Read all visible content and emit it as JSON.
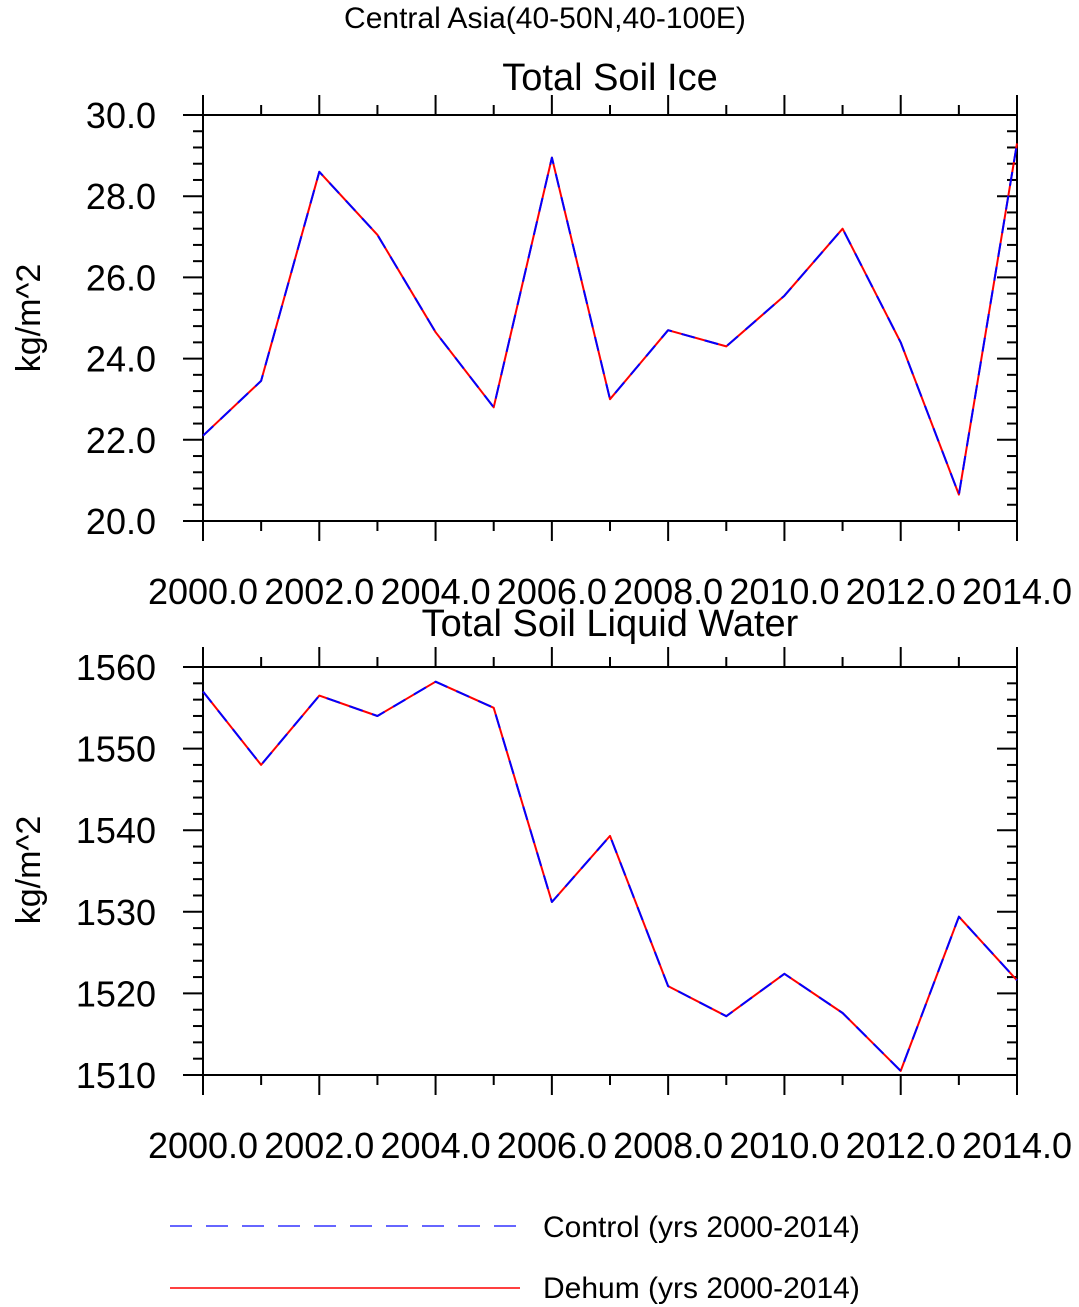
{
  "figure": {
    "title": "Central Asia(40-50N,40-100E)"
  },
  "legend": {
    "entries": [
      {
        "label": "Control (yrs 2000-2014)",
        "color": "#3333ff",
        "dash": "dashed"
      },
      {
        "label": "Dehum (yrs 2000-2014)",
        "color": "#ff0000",
        "dash": "solid"
      }
    ]
  },
  "chart_data": [
    {
      "type": "line",
      "title": "Total Soil Ice",
      "xlabel": "",
      "ylabel": "kg/m^2",
      "xlim": [
        2000,
        2014
      ],
      "ylim": [
        20,
        30
      ],
      "x_ticks": [
        2000,
        2002,
        2004,
        2006,
        2008,
        2010,
        2012,
        2014
      ],
      "x_tick_labels": [
        "2000.0",
        "2002.0",
        "2004.0",
        "2006.0",
        "2008.0",
        "2010.0",
        "2012.0",
        "2014.0"
      ],
      "y_ticks": [
        20,
        22,
        24,
        26,
        28,
        30
      ],
      "y_tick_labels": [
        "20.0",
        "22.0",
        "24.0",
        "26.0",
        "28.0",
        "30.0"
      ],
      "x": [
        2000,
        2001,
        2002,
        2003,
        2004,
        2005,
        2006,
        2007,
        2008,
        2009,
        2010,
        2011,
        2012,
        2013,
        2014
      ],
      "series": [
        {
          "name": "Control (yrs 2000-2014)",
          "color": "#0000ff",
          "values": [
            22.1,
            23.45,
            28.6,
            27.05,
            24.65,
            22.8,
            28.95,
            23.0,
            24.7,
            24.3,
            25.55,
            27.2,
            24.4,
            20.65,
            29.3
          ]
        },
        {
          "name": "Dehum (yrs 2000-2014)",
          "color": "#ff0000",
          "values": [
            22.1,
            23.45,
            28.6,
            27.05,
            24.65,
            22.8,
            28.95,
            23.0,
            24.7,
            24.3,
            25.55,
            27.2,
            24.4,
            20.65,
            29.3
          ]
        }
      ]
    },
    {
      "type": "line",
      "title": "Total Soil Liquid Water",
      "xlabel": "",
      "ylabel": "kg/m^2",
      "xlim": [
        2000,
        2014
      ],
      "ylim": [
        1510,
        1560
      ],
      "x_ticks": [
        2000,
        2002,
        2004,
        2006,
        2008,
        2010,
        2012,
        2014
      ],
      "x_tick_labels": [
        "2000.0",
        "2002.0",
        "2004.0",
        "2006.0",
        "2008.0",
        "2010.0",
        "2012.0",
        "2014.0"
      ],
      "y_ticks": [
        1510,
        1520,
        1530,
        1540,
        1550,
        1560
      ],
      "y_tick_labels": [
        "1510",
        "1520",
        "1530",
        "1540",
        "1550",
        "1560"
      ],
      "x": [
        2000,
        2001,
        2002,
        2003,
        2004,
        2005,
        2006,
        2007,
        2008,
        2009,
        2010,
        2011,
        2012,
        2013,
        2014
      ],
      "series": [
        {
          "name": "Control (yrs 2000-2014)",
          "color": "#0000ff",
          "values": [
            1557.0,
            1548.0,
            1556.5,
            1554.0,
            1558.2,
            1555.0,
            1531.2,
            1539.3,
            1520.9,
            1517.2,
            1522.4,
            1517.6,
            1510.5,
            1529.4,
            1521.6
          ]
        },
        {
          "name": "Dehum (yrs 2000-2014)",
          "color": "#ff0000",
          "values": [
            1557.0,
            1548.0,
            1556.5,
            1554.0,
            1558.2,
            1555.0,
            1531.2,
            1539.3,
            1520.9,
            1517.2,
            1522.4,
            1517.6,
            1510.5,
            1529.4,
            1521.6
          ]
        }
      ]
    }
  ]
}
